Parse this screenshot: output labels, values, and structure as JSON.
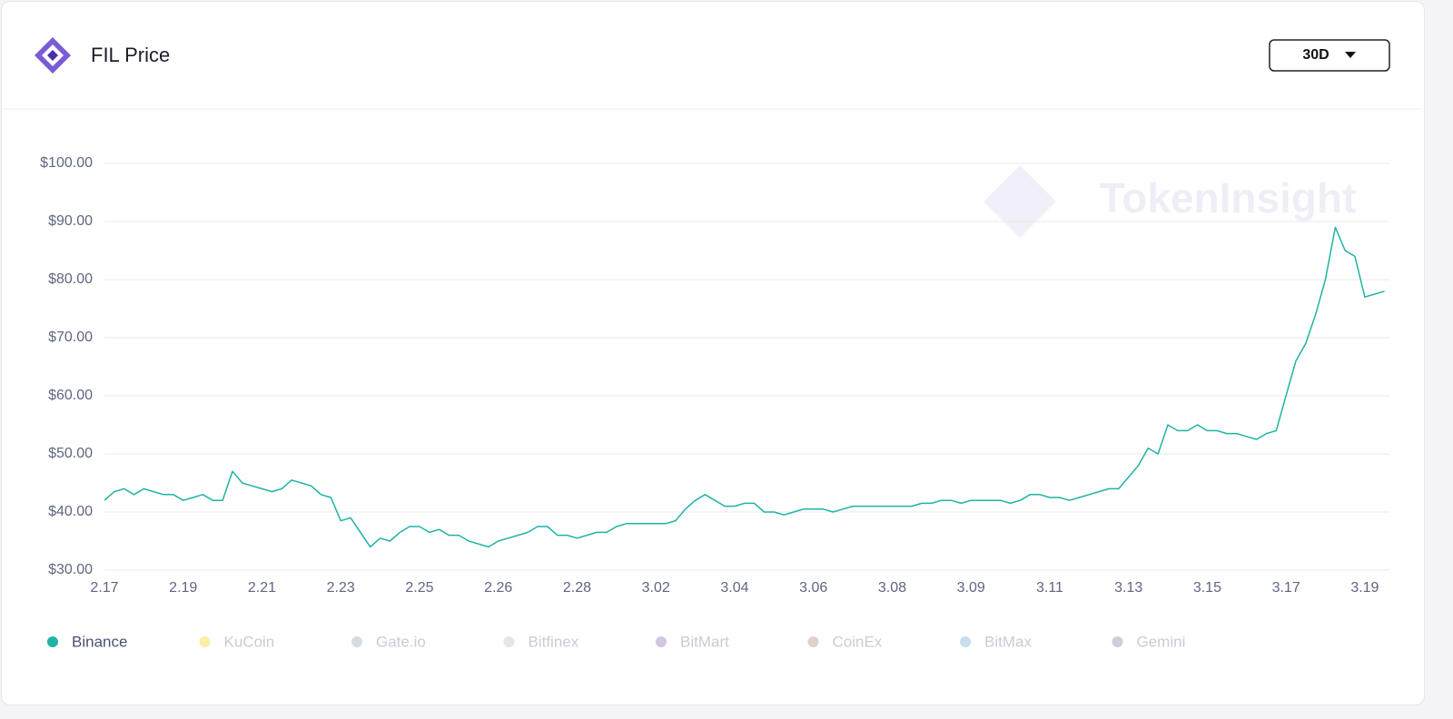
{
  "chart_data": {
    "type": "line",
    "title": "FIL Price",
    "watermark": "TokenInsight",
    "categories": [
      "2.17",
      null,
      null,
      null,
      null,
      null,
      null,
      null,
      "2.19",
      null,
      null,
      null,
      null,
      null,
      null,
      null,
      "2.21",
      null,
      null,
      null,
      null,
      null,
      null,
      null,
      "2.23",
      null,
      null,
      null,
      null,
      null,
      null,
      null,
      "2.25",
      null,
      null,
      null,
      null,
      null,
      null,
      null,
      "2.26",
      null,
      null,
      null,
      null,
      null,
      null,
      null,
      "2.28",
      null,
      null,
      null,
      null,
      null,
      null,
      null,
      "3.02",
      null,
      null,
      null,
      null,
      null,
      null,
      null,
      "3.04",
      null,
      null,
      null,
      null,
      null,
      null,
      null,
      "3.06",
      null,
      null,
      null,
      null,
      null,
      null,
      null,
      "3.08",
      null,
      null,
      null,
      null,
      null,
      null,
      null,
      "3.09",
      null,
      null,
      null,
      null,
      null,
      null,
      null,
      "3.11",
      null,
      null,
      null,
      null,
      null,
      null,
      null,
      "3.13",
      null,
      null,
      null,
      null,
      null,
      null,
      null,
      "3.15",
      null,
      null,
      null,
      null,
      null,
      null,
      null,
      "3.17",
      null,
      null,
      null,
      null,
      null,
      null,
      null,
      "3.19",
      null,
      null
    ],
    "series": [
      {
        "name": "Binance",
        "color": "#1fb3a6",
        "visible": true,
        "values": [
          42,
          43.5,
          44,
          43,
          44,
          43.5,
          43,
          43,
          42,
          42.5,
          43,
          42,
          42,
          47,
          45,
          44.5,
          44,
          43.5,
          44,
          45.5,
          45,
          44.5,
          43,
          42.5,
          38.5,
          39,
          36.5,
          34,
          35.5,
          35,
          36.5,
          37.5,
          37.5,
          36.5,
          37,
          36,
          36,
          35,
          34.5,
          34,
          35,
          35.5,
          36,
          36.5,
          37.5,
          37.5,
          36,
          36,
          35.5,
          36,
          36.5,
          36.5,
          37.5,
          38,
          38,
          38,
          38,
          38,
          38.5,
          40.5,
          42,
          43,
          42,
          41,
          41,
          41.5,
          41.5,
          40,
          40,
          39.5,
          40,
          40.5,
          40.5,
          40.5,
          40,
          40.5,
          41,
          41,
          41,
          41,
          41,
          41,
          41,
          41.5,
          41.5,
          42,
          42,
          41.5,
          42,
          42,
          42,
          42,
          41.5,
          42,
          43,
          43,
          42.5,
          42.5,
          42,
          42.5,
          43,
          43.5,
          44,
          44,
          46,
          48,
          51,
          50,
          55,
          54,
          54,
          55,
          54,
          54,
          53.5,
          53.5,
          53,
          52.5,
          53.5,
          54,
          60,
          66,
          69,
          74,
          80,
          89,
          85,
          84,
          77,
          77.5,
          78
        ]
      },
      {
        "name": "KuCoin",
        "color": "#fbeea8",
        "visible": false
      },
      {
        "name": "Gate.io",
        "color": "#d5dde3",
        "visible": false
      },
      {
        "name": "Bitfinex",
        "color": "#e6e6ea",
        "visible": false
      },
      {
        "name": "BitMart",
        "color": "#d3c6e3",
        "visible": false
      },
      {
        "name": "CoinEx",
        "color": "#e3cfcc",
        "visible": false
      },
      {
        "name": "BitMax",
        "color": "#c6def0",
        "visible": false
      },
      {
        "name": "Gemini",
        "color": "#cfcdd8",
        "visible": false
      }
    ],
    "ylim": [
      30,
      100
    ],
    "yticks": [
      {
        "value": 30,
        "label": "$30.00"
      },
      {
        "value": 40,
        "label": "$40.00"
      },
      {
        "value": 50,
        "label": "$50.00"
      },
      {
        "value": 60,
        "label": "$60.00"
      },
      {
        "value": 70,
        "label": "$70.00"
      },
      {
        "value": 80,
        "label": "$80.00"
      },
      {
        "value": 90,
        "label": "$90.00"
      },
      {
        "value": 100,
        "label": "$100.00"
      }
    ],
    "grid": true
  },
  "controls": {
    "range": "30D"
  }
}
